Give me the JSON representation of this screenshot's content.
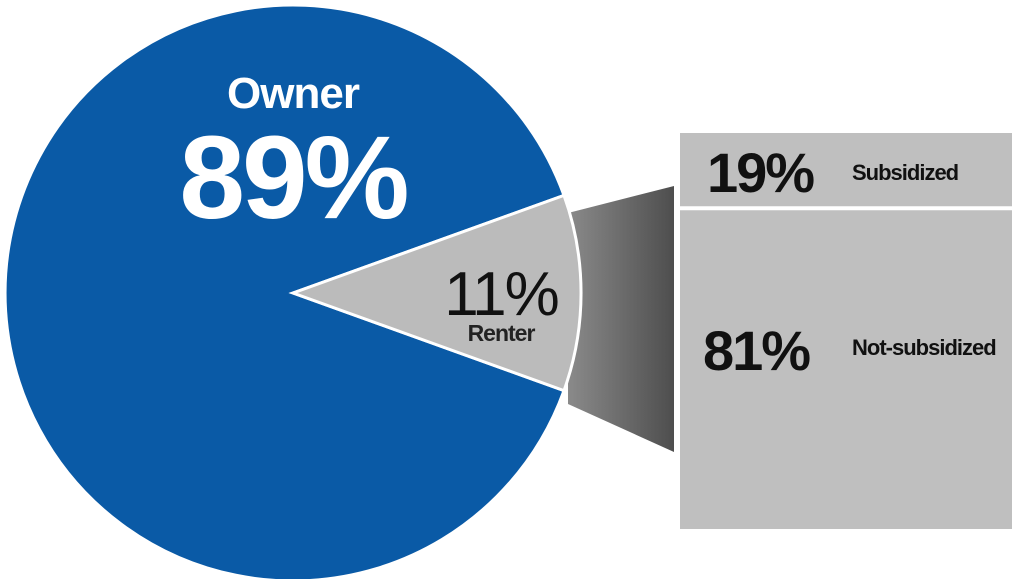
{
  "chart_data": {
    "type": "pie",
    "slices": [
      {
        "label": "Owner",
        "value": 89,
        "value_text": "89%",
        "color": "#0a5aa6"
      },
      {
        "label": "Renter",
        "value": 11,
        "value_text": "11%",
        "color": "#bbbbbb"
      }
    ],
    "breakdown": {
      "of": "Renter",
      "type": "stacked-bar",
      "segments": [
        {
          "label": "Subsidized",
          "value": 19,
          "value_text": "19%",
          "color": "#bfbfbf"
        },
        {
          "label": "Not-subsidized",
          "value": 81,
          "value_text": "81%",
          "color": "#bfbfbf"
        }
      ]
    },
    "connector_color": "#6b6b6b"
  }
}
